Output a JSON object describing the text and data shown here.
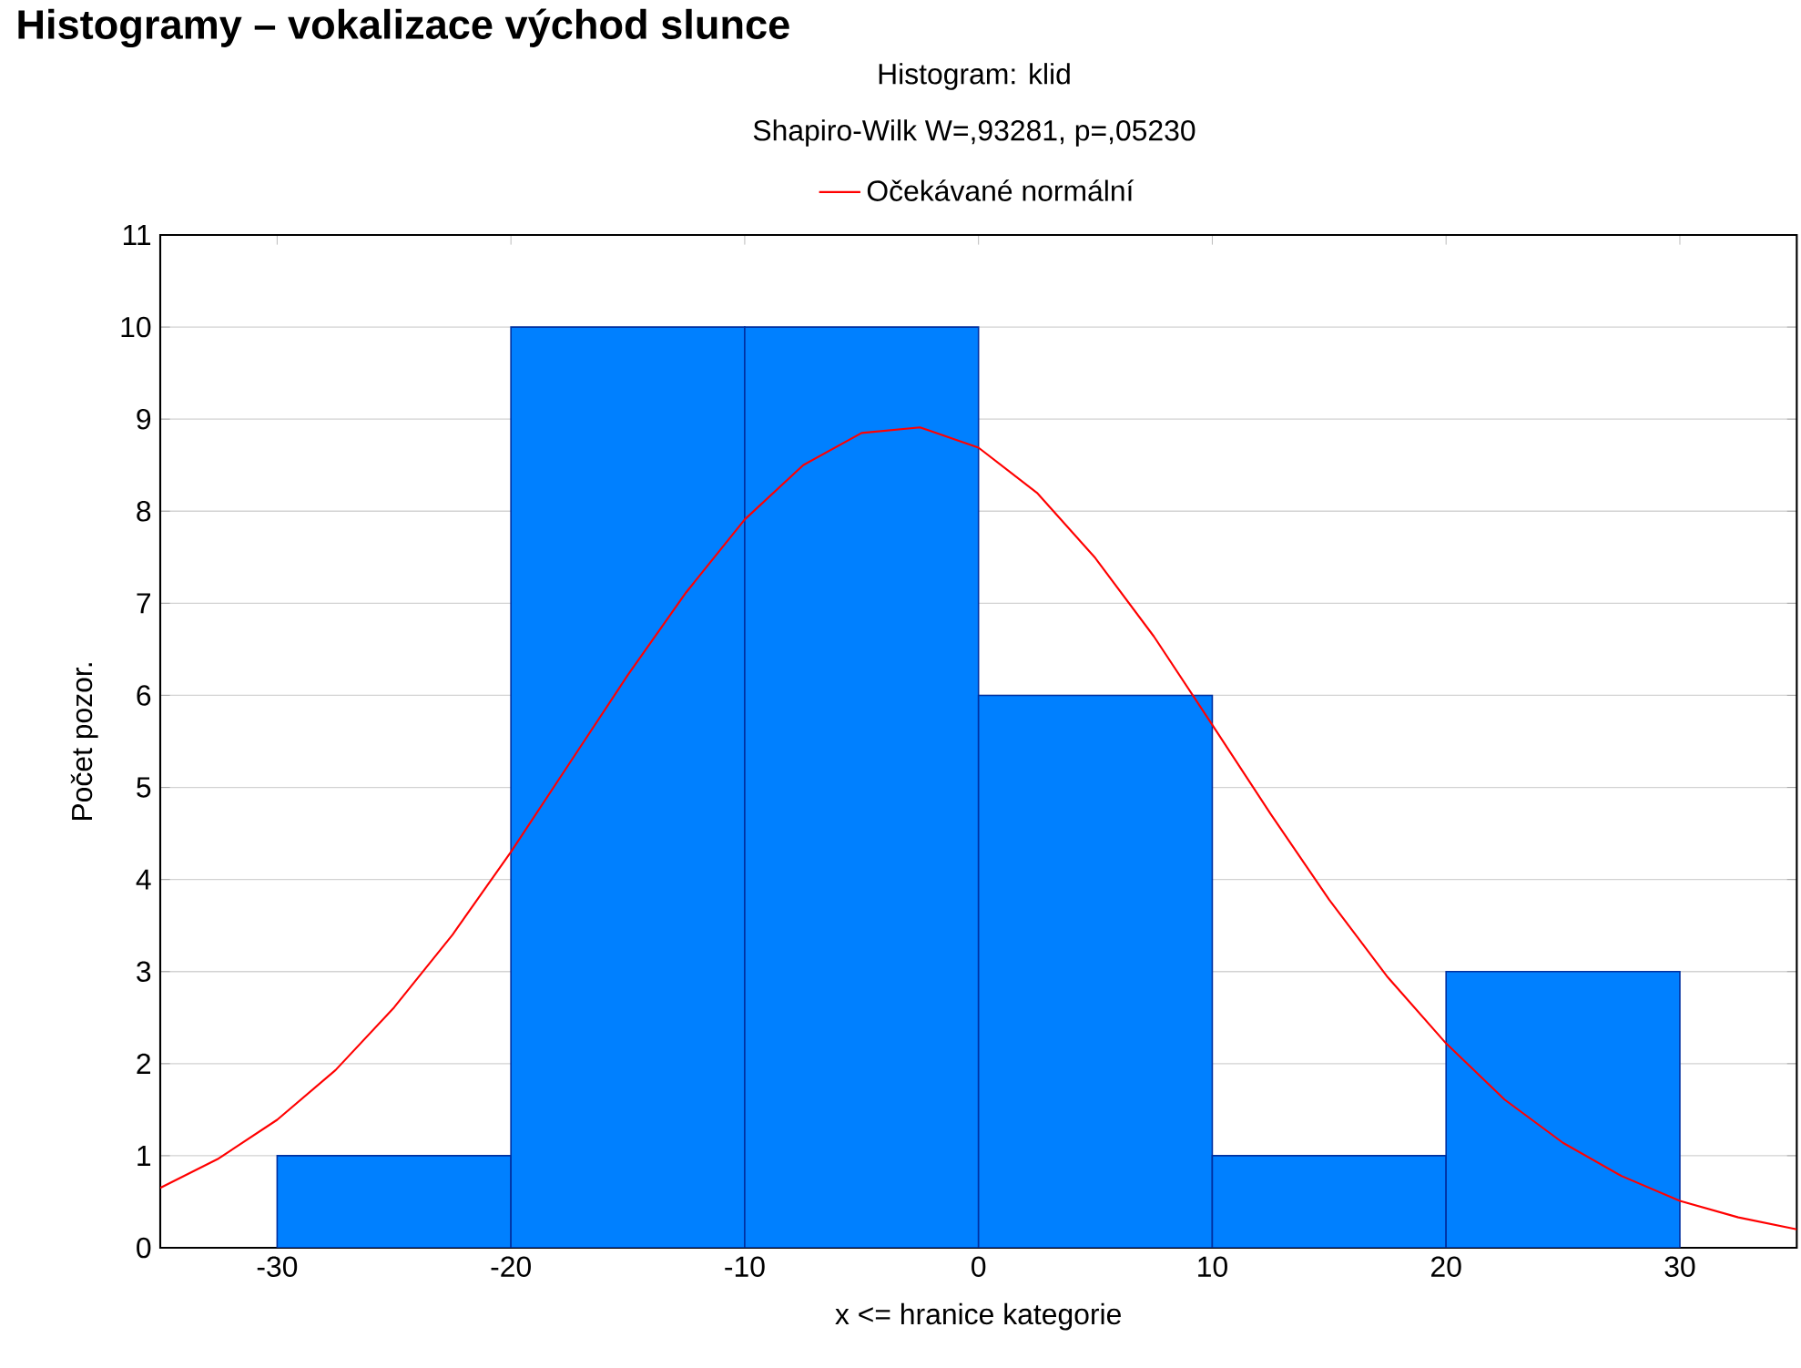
{
  "chart_data": {
    "type": "histogram",
    "title": "Histogramy – vokalizace východ slunce",
    "subtitle": "Histogram: klid",
    "annotations": [
      "Shapiro-Wilk W=,93281, p=,05230"
    ],
    "xlabel": "x <= hranice kategorie",
    "ylabel": "Počet pozor.",
    "bins": [
      -30,
      -20,
      -10,
      0,
      10,
      20,
      30
    ],
    "values": [
      1,
      10,
      10,
      6,
      1,
      3
    ],
    "color": "#0080ff",
    "series": [
      {
        "type": "line",
        "name": "Očekávané normální",
        "color": "#ff0000",
        "x": [
          -35,
          -32.5,
          -30,
          -27.5,
          -25,
          -22.5,
          -20,
          -17.5,
          -15,
          -12.5,
          -10,
          -7.5,
          -5,
          -2.5,
          0,
          2.5,
          5,
          7.5,
          10,
          12.5,
          15,
          17.5,
          20,
          22.5,
          25,
          27.5,
          30,
          32.5,
          35
        ],
        "values": [
          0.65,
          0.97,
          1.39,
          1.93,
          2.61,
          3.4,
          4.3,
          5.26,
          6.22,
          7.12,
          7.91,
          8.5,
          8.85,
          8.91,
          8.69,
          8.2,
          7.49,
          6.64,
          5.68,
          4.71,
          3.78,
          2.94,
          2.22,
          1.61,
          1.14,
          0.78,
          0.51,
          0.33,
          0.2
        ]
      }
    ],
    "xlim": [
      -35,
      35
    ],
    "xticks": [
      -30,
      -20,
      -10,
      0,
      10,
      20,
      30
    ],
    "ylim": [
      0,
      11
    ],
    "yticks": [
      0,
      1,
      2,
      3,
      4,
      5,
      6,
      7,
      8,
      9,
      10,
      11
    ],
    "grid": "y",
    "legend": "top",
    "marker": "none"
  }
}
